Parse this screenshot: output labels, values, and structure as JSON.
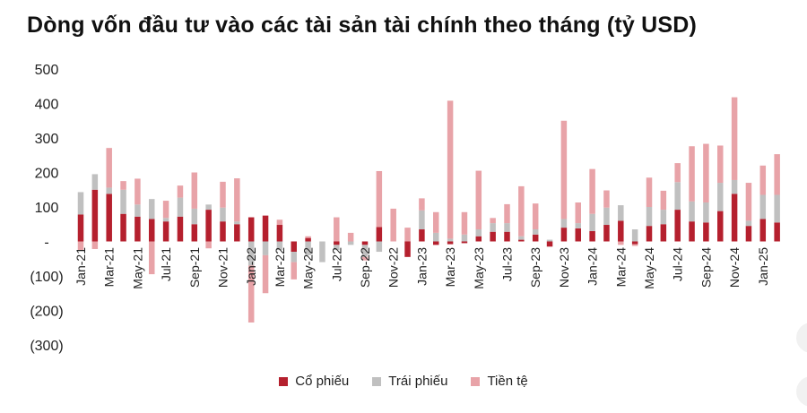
{
  "title": "Dòng vốn đầu tư vào các tài sản tài chính theo tháng (tỷ USD)",
  "chart_data": {
    "type": "bar",
    "stacked": true,
    "y_ticks": [
      {
        "value": 500,
        "label": "500"
      },
      {
        "value": 400,
        "label": "400"
      },
      {
        "value": 300,
        "label": "300"
      },
      {
        "value": 200,
        "label": "200"
      },
      {
        "value": 100,
        "label": "100"
      },
      {
        "value": 0,
        "label": "-"
      },
      {
        "value": -100,
        "label": "(100)"
      },
      {
        "value": -200,
        "label": "(200)"
      },
      {
        "value": -300,
        "label": "(300)"
      }
    ],
    "ylim": [
      -300,
      500
    ],
    "grid": false,
    "legend_position": "bottom",
    "categories": [
      "Jan-21",
      "Feb-21",
      "Mar-21",
      "Apr-21",
      "May-21",
      "Jun-21",
      "Jul-21",
      "Aug-21",
      "Sep-21",
      "Oct-21",
      "Nov-21",
      "Dec-21",
      "Jan-22",
      "Feb-22",
      "Mar-22",
      "Apr-22",
      "May-22",
      "Jun-22",
      "Jul-22",
      "Aug-22",
      "Sep-22",
      "Oct-22",
      "Nov-22",
      "Dec-22",
      "Jan-23",
      "Feb-23",
      "Mar-23",
      "Apr-23",
      "May-23",
      "Jun-23",
      "Jul-23",
      "Aug-23",
      "Sep-23",
      "Oct-23",
      "Nov-23",
      "Dec-23",
      "Jan-24",
      "Feb-24",
      "Mar-24",
      "Apr-24",
      "May-24",
      "Jun-24",
      "Jul-24",
      "Aug-24",
      "Sep-24",
      "Oct-24",
      "Nov-24",
      "Dec-24",
      "Jan-25",
      "Feb-25"
    ],
    "x_tick_labels": [
      "Jan-21",
      "Mar-21",
      "May-21",
      "Jul-21",
      "Sep-21",
      "Nov-21",
      "Jan-22",
      "Mar-22",
      "May-22",
      "Jul-22",
      "Sep-22",
      "Nov-22",
      "Jan-23",
      "Mar-23",
      "May-23",
      "Jul-23",
      "Sep-23",
      "Nov-23",
      "Jan-24",
      "Mar-24",
      "May-24",
      "Jul-24",
      "Sep-24",
      "Nov-24",
      "Jan-25"
    ],
    "series": [
      {
        "name": "Cổ phiếu",
        "color": "#b5202e",
        "values": [
          78,
          150,
          138,
          80,
          72,
          65,
          58,
          72,
          50,
          92,
          58,
          50,
          70,
          75,
          48,
          -30,
          10,
          0,
          -10,
          0,
          -10,
          42,
          0,
          -45,
          35,
          -10,
          -8,
          -5,
          15,
          28,
          28,
          5,
          20,
          -15,
          40,
          38,
          30,
          48,
          60,
          -8,
          45,
          50,
          92,
          58,
          55,
          88,
          138,
          45,
          65,
          55
        ]
      },
      {
        "name": "Trái phiếu",
        "color": "#c0c0c0",
        "values": [
          65,
          45,
          18,
          70,
          35,
          58,
          10,
          55,
          45,
          15,
          40,
          8,
          -70,
          -40,
          -25,
          -30,
          -40,
          -60,
          -15,
          -10,
          -35,
          -30,
          0,
          0,
          55,
          25,
          8,
          20,
          20,
          25,
          25,
          10,
          15,
          5,
          25,
          15,
          50,
          50,
          45,
          35,
          55,
          42,
          80,
          58,
          58,
          82,
          40,
          15,
          70,
          80
        ]
      },
      {
        "name": "Tiền tệ",
        "color": "#e8a3a8",
        "values": [
          -25,
          -22,
          115,
          25,
          75,
          -95,
          50,
          35,
          105,
          -20,
          75,
          125,
          -165,
          -110,
          15,
          -50,
          5,
          0,
          70,
          25,
          -10,
          162,
          95,
          40,
          35,
          60,
          400,
          65,
          170,
          15,
          55,
          145,
          75,
          0,
          285,
          60,
          130,
          50,
          -10,
          -5,
          85,
          55,
          55,
          160,
          170,
          108,
          240,
          110,
          85,
          118
        ]
      }
    ]
  }
}
